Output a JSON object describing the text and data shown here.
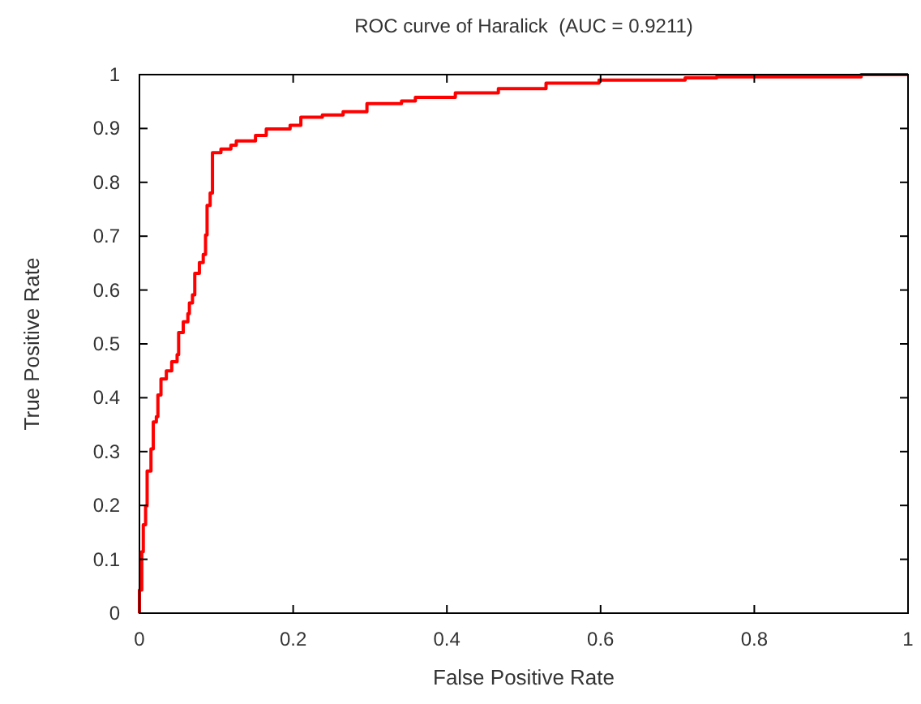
{
  "chart_data": {
    "type": "step",
    "title": "ROC curve of Haralick  (AUC = 0.9211)",
    "xlabel": "False Positive Rate",
    "ylabel": "True Positive Rate",
    "xlim": [
      0,
      1
    ],
    "ylim": [
      0,
      1
    ],
    "xticks": [
      0,
      0.2,
      0.4,
      0.6,
      0.8,
      1
    ],
    "yticks": [
      0,
      0.1,
      0.2,
      0.3,
      0.4,
      0.5,
      0.6,
      0.7,
      0.8,
      0.9,
      1
    ],
    "grid": false,
    "marker": "none",
    "line_style": "solid",
    "series": [
      {
        "color": "#ff0000",
        "x": [
          0,
          0,
          0.003,
          0.005,
          0.008,
          0.01,
          0.015,
          0.018,
          0.022,
          0.024,
          0.028,
          0.035,
          0.042,
          0.049,
          0.051,
          0.057,
          0.063,
          0.065,
          0.069,
          0.072,
          0.078,
          0.083,
          0.086,
          0.088,
          0.092,
          0.095,
          0.106,
          0.119,
          0.126,
          0.151,
          0.165,
          0.196,
          0.21,
          0.238,
          0.265,
          0.296,
          0.341,
          0.359,
          0.411,
          0.467,
          0.529,
          0.598,
          0.71,
          0.751,
          0.939,
          1
        ],
        "values": [
          0,
          0.043,
          0.114,
          0.164,
          0.199,
          0.264,
          0.305,
          0.355,
          0.365,
          0.405,
          0.435,
          0.45,
          0.467,
          0.48,
          0.521,
          0.541,
          0.556,
          0.576,
          0.591,
          0.631,
          0.651,
          0.666,
          0.702,
          0.757,
          0.78,
          0.855,
          0.862,
          0.869,
          0.877,
          0.887,
          0.899,
          0.906,
          0.921,
          0.925,
          0.931,
          0.946,
          0.951,
          0.958,
          0.966,
          0.974,
          0.984,
          0.99,
          0.994,
          0.996,
          1,
          1
        ]
      }
    ]
  }
}
